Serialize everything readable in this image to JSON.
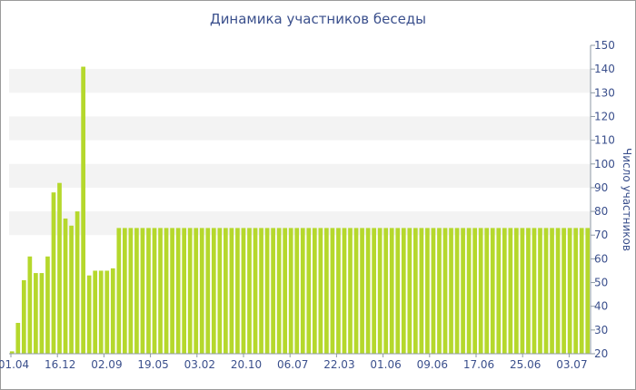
{
  "chart_data": {
    "type": "bar",
    "title": "Динамика участников беседы",
    "xlabel": "",
    "ylabel": "Число участников",
    "ylim": [
      20,
      150
    ],
    "yticks": [
      20,
      30,
      40,
      50,
      60,
      70,
      80,
      90,
      100,
      110,
      120,
      130,
      140,
      150
    ],
    "x_tick_labels": [
      "01.04",
      "16.12",
      "02.09",
      "19.05",
      "03.02",
      "20.10",
      "06.07",
      "22.03",
      "01.06",
      "09.06",
      "17.06",
      "25.06",
      "03.07"
    ],
    "grid": "horizontal bands",
    "colors": {
      "bar": "#b5d82c",
      "band": "#f3f3f3",
      "axis": "#8e9aa6",
      "text": "#3a4f8c"
    },
    "values": [
      21,
      33,
      51,
      61,
      54,
      54,
      61,
      88,
      92,
      77,
      74,
      80,
      141,
      53,
      55,
      55,
      55,
      56,
      73,
      73,
      73,
      73,
      73,
      73,
      73,
      73,
      73,
      73,
      73,
      73,
      73,
      73,
      73,
      73,
      73,
      73,
      73,
      73,
      73,
      73,
      73,
      73,
      73,
      73,
      73,
      73,
      73,
      73,
      73,
      73,
      73,
      73,
      73,
      73,
      73,
      73,
      73,
      73,
      73,
      73,
      73,
      73,
      73,
      73,
      73,
      73,
      73,
      73,
      73,
      73,
      73,
      73,
      73,
      73,
      73,
      73,
      73,
      73,
      73,
      73,
      73,
      73,
      73,
      73,
      73,
      73,
      73,
      73,
      73,
      73,
      73,
      73,
      73,
      73,
      73,
      73,
      73,
      73
    ]
  }
}
